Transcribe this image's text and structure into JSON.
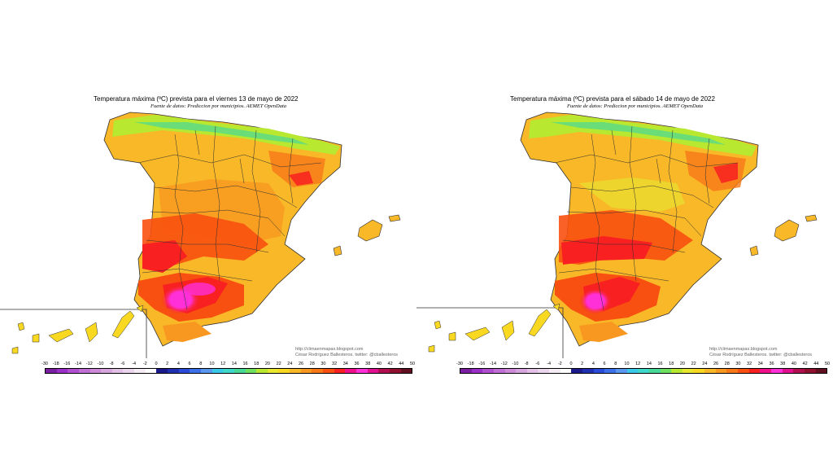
{
  "maps": [
    {
      "title": "Temperatura máxima (ºC) prevista para el viernes 13 de mayo de 2022",
      "source": "Fuente de datos: Prediccion por municipios. AEMET OpenData",
      "credit_blog": "http://climaenmapas.blogspot.com",
      "credit_author": "César Rodríguez Ballesteros. twitter: @cballesteros"
    },
    {
      "title": "Temperatura máxima (ºC) prevista para el sábado 14 de mayo de 2022",
      "source": "Fuente de datos: Prediccion por municipios. AEMET OpenData",
      "credit_blog": "http://climaenmapas.blogspot.com",
      "credit_author": "César Rodríguez Ballesteros. twitter: @cballesteros"
    }
  ],
  "legend": {
    "labels": [
      "-30",
      "-18",
      "-16",
      "-14",
      "-12",
      "-10",
      "-8",
      "-6",
      "-4",
      "-2",
      "0",
      "2",
      "4",
      "6",
      "8",
      "10",
      "12",
      "14",
      "16",
      "18",
      "20",
      "22",
      "24",
      "26",
      "28",
      "30",
      "32",
      "34",
      "36",
      "38",
      "40",
      "42",
      "44",
      "50"
    ],
    "colors": [
      "#7a1fa2",
      "#9b30c8",
      "#b04fd0",
      "#c070d4",
      "#cc8ad8",
      "#d8a6de",
      "#e3c0e6",
      "#ecd6ee",
      "#f6ecf6",
      "#ffffff",
      "#1a1a8a",
      "#2030b0",
      "#2a4ad8",
      "#3c70e8",
      "#5a98f0",
      "#3cc8e8",
      "#40d8c8",
      "#48d898",
      "#70e060",
      "#b8e830",
      "#e8e830",
      "#f8d820",
      "#f8b828",
      "#f89820",
      "#f87818",
      "#f85010",
      "#f82020",
      "#f0108c",
      "#ff30d8",
      "#e01090",
      "#b01050",
      "#901030",
      "#601020"
    ]
  }
}
